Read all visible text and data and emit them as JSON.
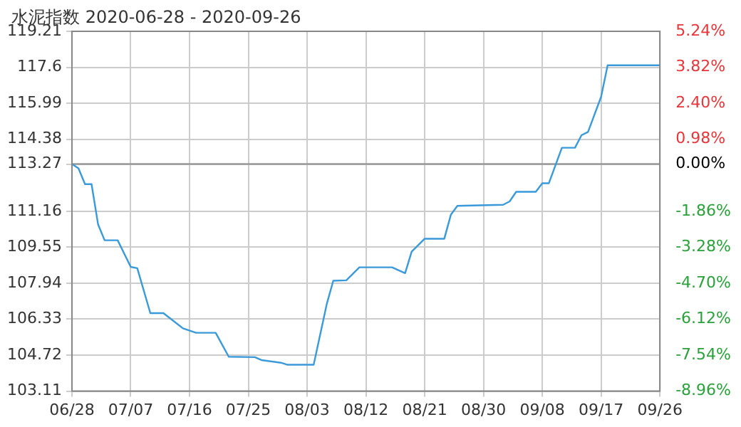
{
  "chart_data": {
    "type": "line",
    "title": "水泥指数 2020-06-28 - 2020-09-26",
    "x": [
      "2020-06-28",
      "2020-06-29",
      "2020-06-30",
      "2020-07-01",
      "2020-07-02",
      "2020-07-03",
      "2020-07-05",
      "2020-07-07",
      "2020-07-08",
      "2020-07-10",
      "2020-07-12",
      "2020-07-15",
      "2020-07-17",
      "2020-07-20",
      "2020-07-22",
      "2020-07-26",
      "2020-07-27",
      "2020-07-30",
      "2020-07-31",
      "2020-08-04",
      "2020-08-06",
      "2020-08-07",
      "2020-08-09",
      "2020-08-11",
      "2020-08-16",
      "2020-08-18",
      "2020-08-19",
      "2020-08-21",
      "2020-08-24",
      "2020-08-25",
      "2020-08-26",
      "2020-09-02",
      "2020-09-03",
      "2020-09-04",
      "2020-09-07",
      "2020-09-08",
      "2020-09-09",
      "2020-09-11",
      "2020-09-13",
      "2020-09-14",
      "2020-09-15",
      "2020-09-17",
      "2020-09-18",
      "2020-09-26"
    ],
    "series": [
      {
        "color": "#3a9ad9",
        "values": [
          113.27,
          113.08,
          112.37,
          112.37,
          110.57,
          109.86,
          109.86,
          108.67,
          108.61,
          106.6,
          106.6,
          105.92,
          105.72,
          105.72,
          104.65,
          104.63,
          104.5,
          104.38,
          104.29,
          104.29,
          107.0,
          108.05,
          108.07,
          108.65,
          108.65,
          108.39,
          109.35,
          109.93,
          109.93,
          111.0,
          111.4,
          111.45,
          111.6,
          112.03,
          112.03,
          112.41,
          112.41,
          114.0,
          114.0,
          114.56,
          114.71,
          116.28,
          117.69,
          117.69
        ]
      }
    ],
    "xlim": [
      "2020-06-28",
      "2020-09-26"
    ],
    "xticks": [
      {
        "value": "2020-06-28",
        "label": "06/28"
      },
      {
        "value": "2020-07-07",
        "label": "07/07"
      },
      {
        "value": "2020-07-16",
        "label": "07/16"
      },
      {
        "value": "2020-07-25",
        "label": "07/25"
      },
      {
        "value": "2020-08-03",
        "label": "08/03"
      },
      {
        "value": "2020-08-12",
        "label": "08/12"
      },
      {
        "value": "2020-08-21",
        "label": "08/21"
      },
      {
        "value": "2020-08-30",
        "label": "08/30"
      },
      {
        "value": "2020-09-08",
        "label": "09/08"
      },
      {
        "value": "2020-09-17",
        "label": "09/17"
      },
      {
        "value": "2020-09-26",
        "label": "09/26"
      }
    ],
    "ylim": [
      103.11,
      119.21
    ],
    "yticks": [
      103.11,
      104.72,
      106.33,
      107.94,
      109.55,
      111.16,
      113.27,
      114.38,
      115.99,
      117.6,
      119.21
    ],
    "y2lim": [
      -8.96,
      5.24
    ],
    "y2ticks": [
      {
        "value": -8.96,
        "label": "-8.96%"
      },
      {
        "value": -7.54,
        "label": "-7.54%"
      },
      {
        "value": -6.12,
        "label": "-6.12%"
      },
      {
        "value": -4.7,
        "label": "-4.70%"
      },
      {
        "value": -3.28,
        "label": "-3.28%"
      },
      {
        "value": -1.86,
        "label": "-1.86%"
      },
      {
        "value": 0,
        "label": "0.00%"
      },
      {
        "value": 0.98,
        "label": "0.98%"
      },
      {
        "value": 2.4,
        "label": "2.40%"
      },
      {
        "value": 3.82,
        "label": "3.82%"
      },
      {
        "value": 5.24,
        "label": "5.24%"
      }
    ],
    "ref_lines": [
      {
        "axis": "y",
        "value": 113.27,
        "color": "#999999"
      }
    ],
    "grid": true,
    "legend": false,
    "marker": "none",
    "line_style": "solid"
  }
}
